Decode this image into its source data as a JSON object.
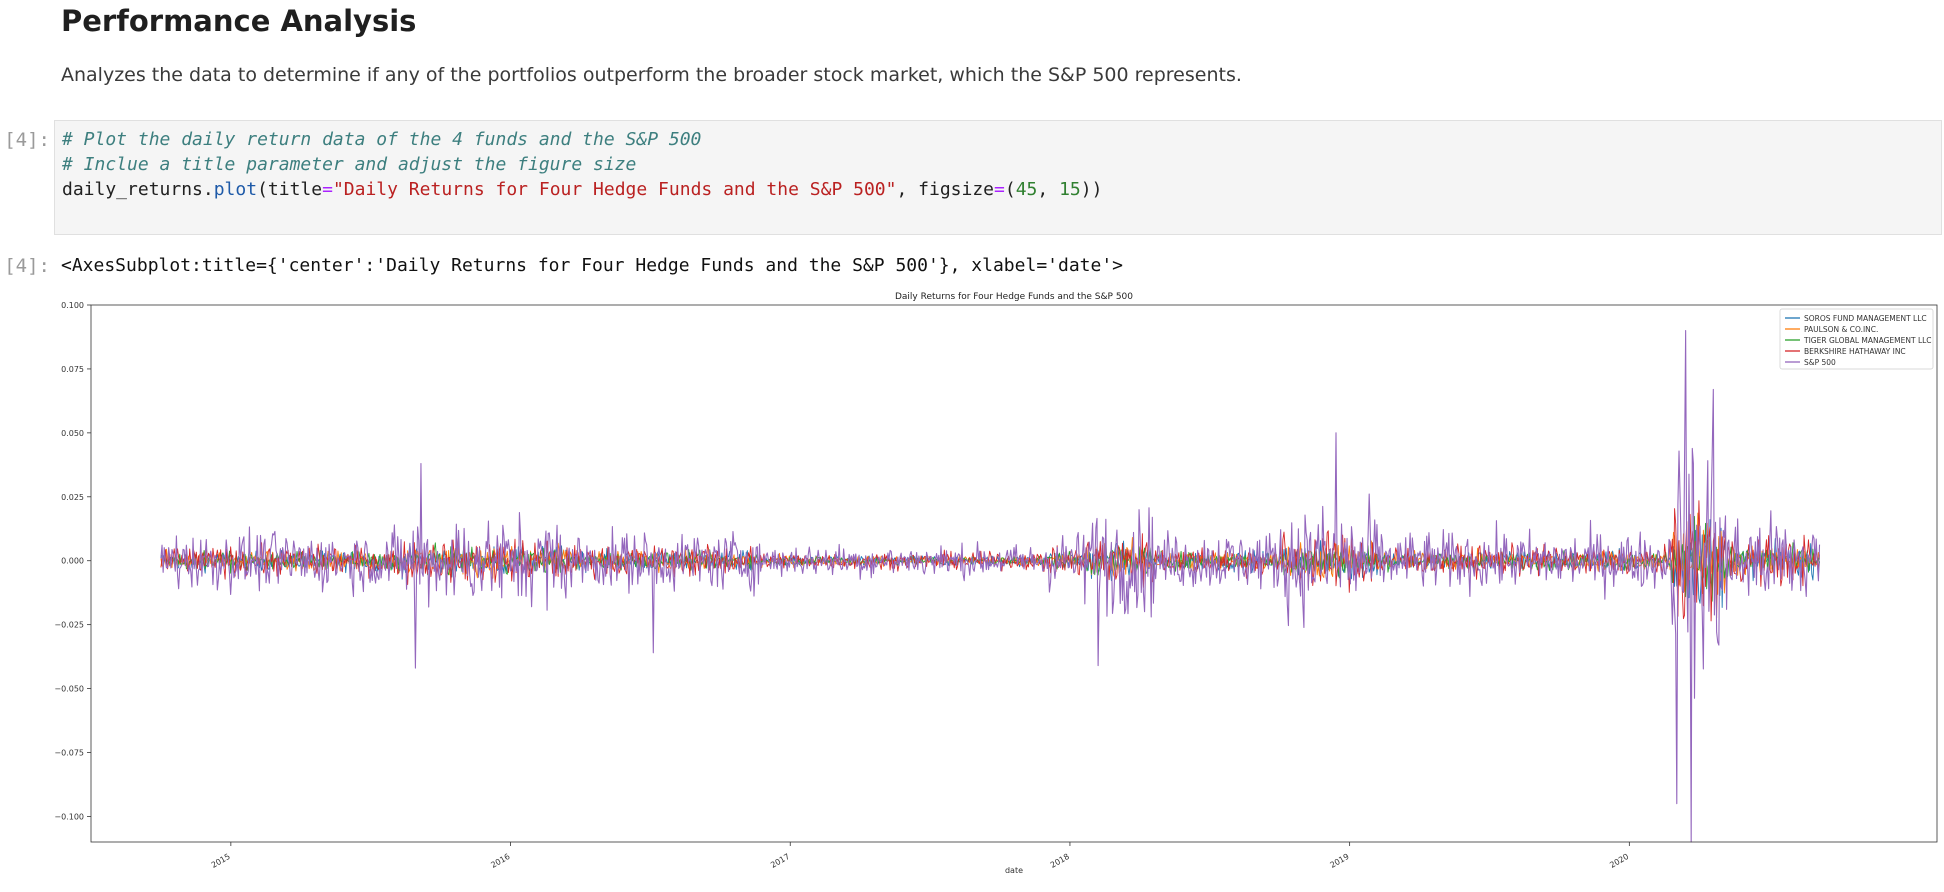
{
  "notebook": {
    "heading": "Performance Analysis",
    "description": "Analyzes the data to determine if any of the portfolios outperform the broader stock market, which the S&P 500 represents.",
    "input_prompt": "[4]:",
    "output_prompt": "[4]:",
    "code": {
      "comment1": "# Plot the daily return data of the 4 funds and the S&P 500",
      "comment2": "# Inclue a title parameter and adjust the figure size",
      "var": "daily_returns.",
      "func": "plot",
      "arg1": "(title",
      "eq": "=",
      "title_str": "\"Daily Returns for Four Hedge Funds and the S&P 500\"",
      "sep": ", figsize",
      "paren_open": "(",
      "num1": "45",
      "comma": ", ",
      "num2": "15",
      "paren_close": "))"
    },
    "output_text": "<AxesSubplot:title={'center':'Daily Returns for Four Hedge Funds and the S&P 500'}, xlabel='date'>"
  },
  "chart_data": {
    "type": "line",
    "title": "Daily Returns for Four Hedge Funds and the S&P 500",
    "xlabel": "date",
    "ylabel": "",
    "xlim": [
      2014.5,
      2021.1
    ],
    "ylim": [
      -0.11,
      0.1
    ],
    "yticks": [
      0.1,
      0.075,
      0.05,
      0.025,
      0.0,
      -0.025,
      -0.05,
      -0.075,
      -0.1
    ],
    "ytick_labels": [
      "0.100",
      "0.075",
      "0.050",
      "0.025",
      "0.000",
      "−0.025",
      "−0.050",
      "−0.075",
      "−0.100"
    ],
    "xticks": [
      2015,
      2016,
      2017,
      2018,
      2019,
      2020
    ],
    "xtick_labels": [
      "2015",
      "2016",
      "2017",
      "2018",
      "2019",
      "2020"
    ],
    "date_range": [
      2014.75,
      2020.68
    ],
    "grid": false,
    "legend_position": "top-right",
    "series": [
      {
        "name": "SOROS FUND MANAGEMENT LLC",
        "color": "#1f77b4",
        "amplitude": 0.004
      },
      {
        "name": "PAULSON & CO.INC.",
        "color": "#ff7f0e",
        "amplitude": 0.004
      },
      {
        "name": "TIGER GLOBAL MANAGEMENT LLC",
        "color": "#2ca02c",
        "amplitude": 0.0035
      },
      {
        "name": "BERKSHIRE HATHAWAY INC",
        "color": "#d62728",
        "amplitude": 0.006
      },
      {
        "name": "S&P 500",
        "color": "#9467bd",
        "amplitude": 0.012
      }
    ],
    "sp500_extremes": [
      {
        "x": 2015.68,
        "y": 0.038
      },
      {
        "x": 2015.66,
        "y": -0.042
      },
      {
        "x": 2016.51,
        "y": -0.036
      },
      {
        "x": 2018.1,
        "y": -0.041
      },
      {
        "x": 2018.95,
        "y": 0.05
      },
      {
        "x": 2020.2,
        "y": 0.09
      },
      {
        "x": 2020.22,
        "y": -0.11
      },
      {
        "x": 2020.17,
        "y": -0.095
      },
      {
        "x": 2020.3,
        "y": 0.067
      }
    ]
  }
}
